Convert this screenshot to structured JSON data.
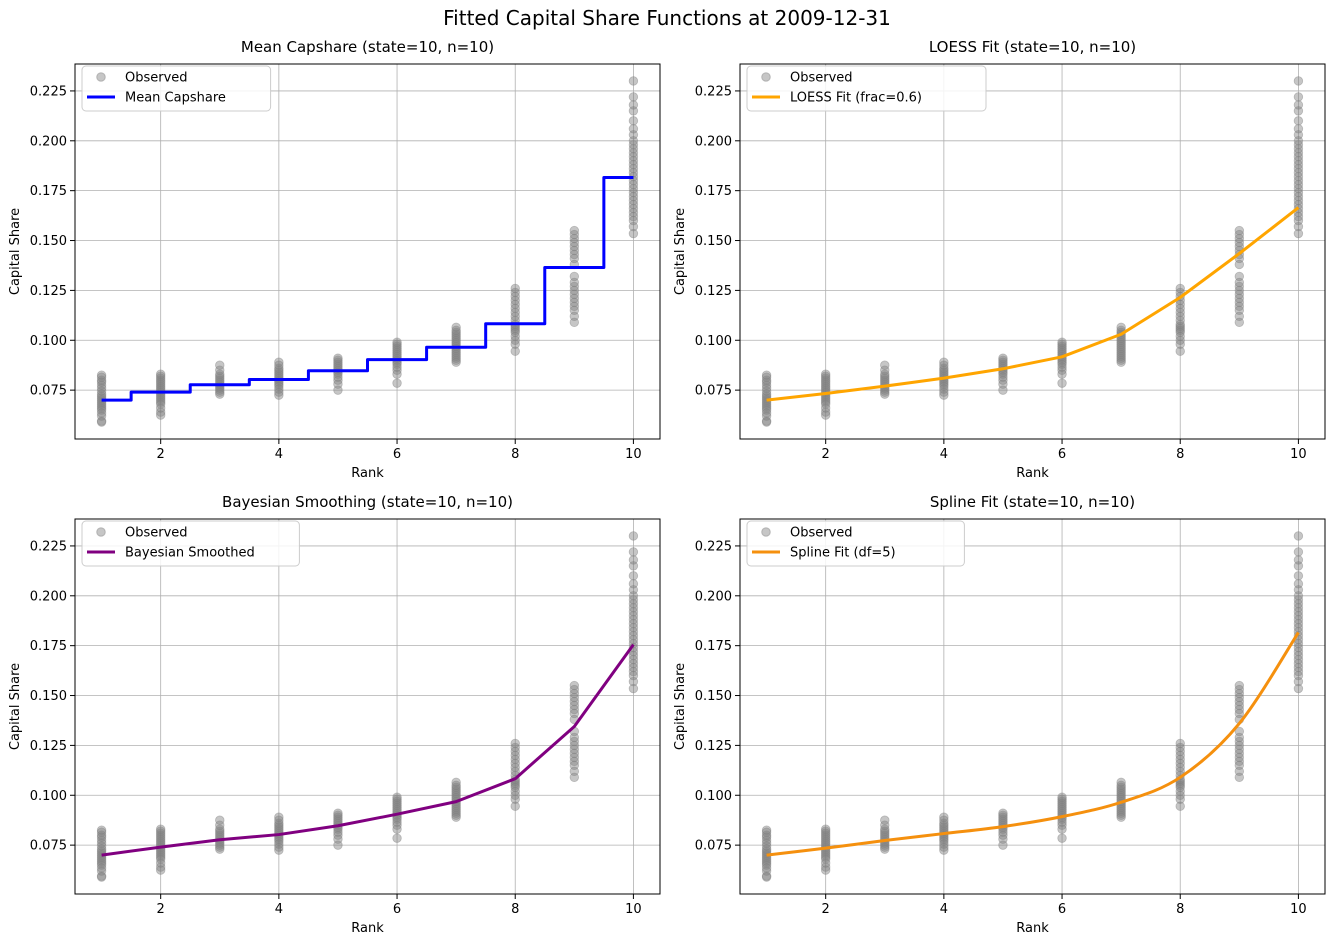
{
  "figure_title": "Fitted Capital Share Functions at 2009-12-31",
  "colors": {
    "observed": "#808080",
    "grid": "#b0b0b0",
    "axis": "#000000"
  },
  "chart_data": [
    {
      "type": "scatter+step",
      "title": "Mean Capshare (state=10, n=10)",
      "xlabel": "Rank",
      "ylabel": "Capital Share",
      "xlim": [
        0.55,
        10.45
      ],
      "ylim": [
        0.0505,
        0.2385
      ],
      "xticks": [
        2,
        4,
        6,
        8,
        10
      ],
      "yticks": [
        0.075,
        0.1,
        0.125,
        0.15,
        0.175,
        0.2,
        0.225
      ],
      "ytick_labels": [
        "0.075",
        "0.100",
        "0.125",
        "0.150",
        "0.175",
        "0.200",
        "0.225"
      ],
      "grid": true,
      "legend_position": "top-left",
      "fit_style": "step",
      "series": [
        {
          "name": "Observed",
          "kind": "scatter"
        },
        {
          "name": "Mean Capshare",
          "kind": "line",
          "color": "#0000ff",
          "x": [
            1,
            2,
            3,
            4,
            5,
            6,
            7,
            8,
            9,
            10
          ],
          "y": [
            0.07,
            0.074,
            0.0777,
            0.0803,
            0.0847,
            0.0903,
            0.0965,
            0.1083,
            0.1365,
            0.1816
          ]
        }
      ]
    },
    {
      "type": "scatter+line",
      "title": "LOESS Fit (state=10, n=10)",
      "xlabel": "Rank",
      "ylabel": "Capital Share",
      "xlim": [
        0.55,
        10.45
      ],
      "ylim": [
        0.0505,
        0.2385
      ],
      "xticks": [
        2,
        4,
        6,
        8,
        10
      ],
      "yticks": [
        0.075,
        0.1,
        0.125,
        0.15,
        0.175,
        0.2,
        0.225
      ],
      "ytick_labels": [
        "0.075",
        "0.100",
        "0.125",
        "0.150",
        "0.175",
        "0.200",
        "0.225"
      ],
      "grid": true,
      "legend_position": "top-left",
      "fit_style": "linear",
      "series": [
        {
          "name": "Observed",
          "kind": "scatter"
        },
        {
          "name": "LOESS Fit (frac=0.6)",
          "kind": "line",
          "color": "#ffa500",
          "x": [
            1,
            2,
            3,
            4,
            5,
            6,
            7,
            8,
            9,
            10
          ],
          "y": [
            0.07,
            0.0733,
            0.077,
            0.081,
            0.0857,
            0.0917,
            0.103,
            0.1215,
            0.1435,
            0.1665
          ]
        }
      ]
    },
    {
      "type": "scatter+line",
      "title": "Bayesian Smoothing (state=10, n=10)",
      "xlabel": "Rank",
      "ylabel": "Capital Share",
      "xlim": [
        0.55,
        10.45
      ],
      "ylim": [
        0.0505,
        0.2385
      ],
      "xticks": [
        2,
        4,
        6,
        8,
        10
      ],
      "yticks": [
        0.075,
        0.1,
        0.125,
        0.15,
        0.175,
        0.2,
        0.225
      ],
      "ytick_labels": [
        "0.075",
        "0.100",
        "0.125",
        "0.150",
        "0.175",
        "0.200",
        "0.225"
      ],
      "grid": true,
      "legend_position": "top-left",
      "fit_style": "linear",
      "series": [
        {
          "name": "Observed",
          "kind": "scatter"
        },
        {
          "name": "Bayesian Smoothed",
          "kind": "line",
          "color": "#800080",
          "x": [
            1,
            2,
            3,
            4,
            5,
            6,
            7,
            8,
            9,
            10
          ],
          "y": [
            0.07,
            0.074,
            0.0777,
            0.0803,
            0.0847,
            0.0905,
            0.0968,
            0.1083,
            0.1345,
            0.1755
          ]
        }
      ]
    },
    {
      "type": "scatter+line",
      "title": "Spline Fit (state=10, n=10)",
      "xlabel": "Rank",
      "ylabel": "Capital Share",
      "xlim": [
        0.55,
        10.45
      ],
      "ylim": [
        0.0505,
        0.2385
      ],
      "xticks": [
        2,
        4,
        6,
        8,
        10
      ],
      "yticks": [
        0.075,
        0.1,
        0.125,
        0.15,
        0.175,
        0.2,
        0.225
      ],
      "ytick_labels": [
        "0.075",
        "0.100",
        "0.125",
        "0.150",
        "0.175",
        "0.200",
        "0.225"
      ],
      "grid": true,
      "legend_position": "top-left",
      "fit_style": "smooth",
      "series": [
        {
          "name": "Observed",
          "kind": "scatter"
        },
        {
          "name": "Spline Fit (df=5)",
          "kind": "line",
          "color": "#f5900e",
          "x": [
            1,
            2,
            3,
            4,
            5,
            6,
            7,
            8,
            9,
            10
          ],
          "y": [
            0.07,
            0.0735,
            0.0773,
            0.0808,
            0.0843,
            0.0893,
            0.0965,
            0.109,
            0.136,
            0.1816
          ]
        }
      ]
    }
  ],
  "observed_points": {
    "x": [
      1,
      2,
      3,
      4,
      5,
      6,
      7,
      8,
      9,
      10
    ],
    "y": [
      [
        0.059,
        0.0595,
        0.062,
        0.0635,
        0.065,
        0.066,
        0.067,
        0.068,
        0.069,
        0.07,
        0.071,
        0.072,
        0.073,
        0.0745,
        0.076,
        0.0775,
        0.079,
        0.08,
        0.0815,
        0.0825
      ],
      [
        0.0625,
        0.064,
        0.066,
        0.068,
        0.069,
        0.07,
        0.071,
        0.072,
        0.073,
        0.074,
        0.075,
        0.076,
        0.077,
        0.078,
        0.079,
        0.08,
        0.081,
        0.082,
        0.083
      ],
      [
        0.073,
        0.074,
        0.075,
        0.076,
        0.077,
        0.078,
        0.079,
        0.08,
        0.081,
        0.082,
        0.083,
        0.085,
        0.0875
      ],
      [
        0.0725,
        0.074,
        0.0755,
        0.077,
        0.078,
        0.079,
        0.08,
        0.081,
        0.082,
        0.083,
        0.084,
        0.085,
        0.086,
        0.0875,
        0.089
      ],
      [
        0.075,
        0.078,
        0.08,
        0.0815,
        0.083,
        0.084,
        0.085,
        0.086,
        0.087,
        0.088,
        0.089,
        0.09,
        0.091
      ],
      [
        0.0785,
        0.083,
        0.085,
        0.0865,
        0.088,
        0.089,
        0.09,
        0.091,
        0.092,
        0.093,
        0.094,
        0.095,
        0.096,
        0.097,
        0.098,
        0.099
      ],
      [
        0.089,
        0.09,
        0.091,
        0.092,
        0.093,
        0.094,
        0.095,
        0.096,
        0.097,
        0.098,
        0.099,
        0.1,
        0.101,
        0.102,
        0.103,
        0.104,
        0.105,
        0.1065
      ],
      [
        0.0945,
        0.098,
        0.1,
        0.102,
        0.104,
        0.105,
        0.106,
        0.107,
        0.108,
        0.11,
        0.112,
        0.114,
        0.116,
        0.118,
        0.12,
        0.122,
        0.124,
        0.126
      ],
      [
        0.109,
        0.112,
        0.115,
        0.117,
        0.119,
        0.121,
        0.123,
        0.125,
        0.127,
        0.129,
        0.132,
        0.138,
        0.141,
        0.143,
        0.145,
        0.147,
        0.149,
        0.151,
        0.153,
        0.155
      ],
      [
        0.1535,
        0.157,
        0.16,
        0.162,
        0.164,
        0.166,
        0.168,
        0.17,
        0.172,
        0.174,
        0.176,
        0.178,
        0.18,
        0.182,
        0.184,
        0.186,
        0.188,
        0.19,
        0.192,
        0.194,
        0.196,
        0.198,
        0.2,
        0.203,
        0.206,
        0.21,
        0.215,
        0.218,
        0.222,
        0.23
      ]
    ]
  }
}
